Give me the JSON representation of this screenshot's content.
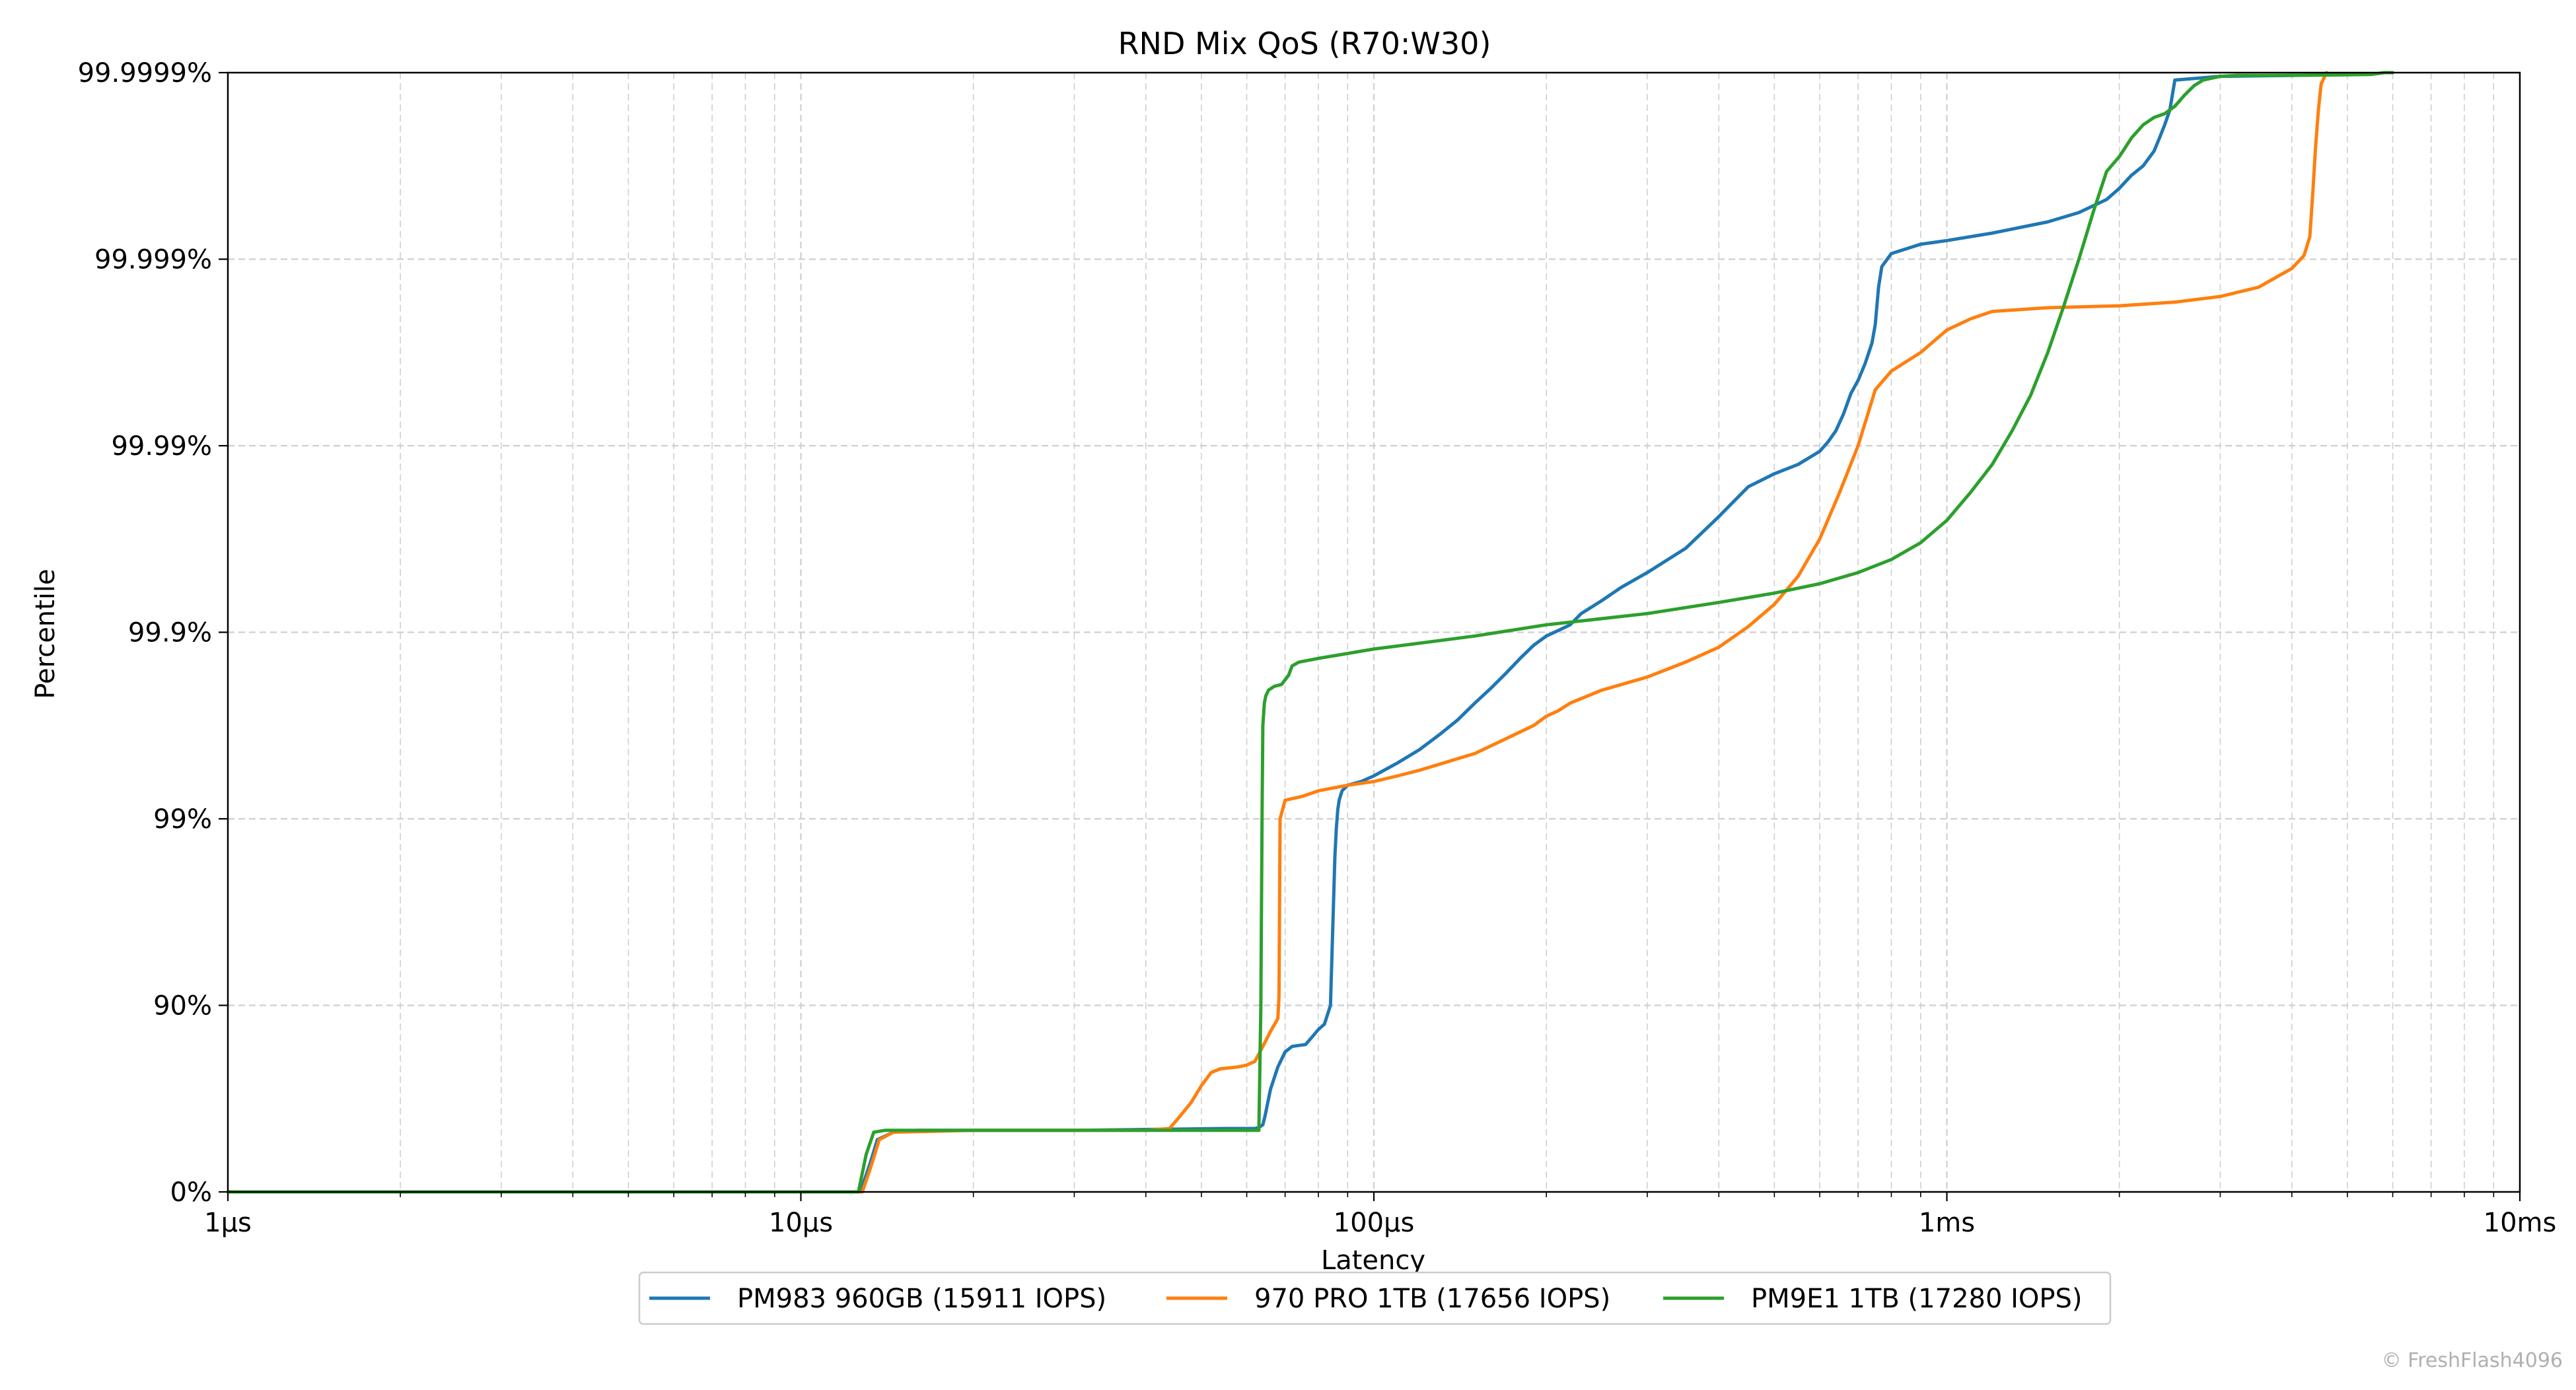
{
  "chart_data": {
    "type": "line",
    "title": "RND Mix QoS (R70:W30)",
    "xlabel": "Latency",
    "ylabel": "Percentile",
    "x_scale": "log",
    "x_unit": "µs",
    "xlim": [
      1,
      10000
    ],
    "y_scale": "nines",
    "ylim_nines": [
      0,
      6
    ],
    "x_ticks": [
      {
        "value": 1,
        "label": "1µs"
      },
      {
        "value": 10,
        "label": "10µs"
      },
      {
        "value": 100,
        "label": "100µs"
      },
      {
        "value": 1000,
        "label": "1ms"
      },
      {
        "value": 10000,
        "label": "10ms"
      }
    ],
    "y_ticks": [
      {
        "nines": 0,
        "label": "0%"
      },
      {
        "nines": 1,
        "label": "90%"
      },
      {
        "nines": 2,
        "label": "99%"
      },
      {
        "nines": 3,
        "label": "99.9%"
      },
      {
        "nines": 4,
        "label": "99.99%"
      },
      {
        "nines": 5,
        "label": "99.999%"
      },
      {
        "nines": 6,
        "label": "99.9999%"
      }
    ],
    "grid": true,
    "legend_position": "bottom-center",
    "series": [
      {
        "name": "PM983 960GB (15911 IOPS)",
        "color": "#1f77b4",
        "x": [
          1,
          12.7,
          13.2,
          13.6,
          14.5,
          16,
          30,
          55,
          62,
          63,
          64,
          64.5,
          65,
          66,
          68,
          70,
          72,
          74,
          76,
          78,
          80,
          82,
          84,
          85.5,
          86,
          86.5,
          87,
          88,
          90,
          95,
          100,
          110,
          120,
          130,
          140,
          150,
          160,
          170,
          180,
          190,
          200,
          210,
          220,
          230,
          250,
          270,
          300,
          350,
          400,
          450,
          500,
          550,
          600,
          620,
          640,
          660,
          680,
          700,
          720,
          740,
          750,
          760,
          770,
          800,
          900,
          1000,
          1200,
          1500,
          1700,
          1900,
          2000,
          2100,
          2200,
          2300,
          2350,
          2400,
          2450,
          2500,
          3000,
          4000,
          5000
        ],
        "y": [
          0,
          0,
          0.15,
          0.28,
          0.32,
          0.33,
          0.33,
          0.34,
          0.34,
          0.345,
          0.36,
          0.4,
          0.45,
          0.55,
          0.67,
          0.75,
          0.78,
          0.785,
          0.79,
          0.83,
          0.87,
          0.9,
          1.0,
          1.8,
          1.95,
          2.05,
          2.1,
          2.15,
          2.18,
          2.2,
          2.23,
          2.3,
          2.37,
          2.45,
          2.53,
          2.62,
          2.7,
          2.78,
          2.86,
          2.93,
          2.98,
          3.01,
          3.04,
          3.1,
          3.17,
          3.24,
          3.32,
          3.45,
          3.62,
          3.78,
          3.85,
          3.9,
          3.97,
          4.02,
          4.08,
          4.17,
          4.28,
          4.35,
          4.44,
          4.55,
          4.65,
          4.85,
          4.96,
          5.03,
          5.08,
          5.1,
          5.14,
          5.2,
          5.25,
          5.32,
          5.38,
          5.45,
          5.5,
          5.58,
          5.65,
          5.72,
          5.8,
          5.96,
          5.98,
          5.985,
          5.99
        ]
      },
      {
        "name": "970 PRO 1TB (17656 IOPS)",
        "color": "#ff7f0e",
        "x": [
          1,
          12.8,
          13.3,
          13.7,
          14.5,
          20,
          40,
          44,
          46,
          48,
          50,
          52,
          54,
          56,
          58,
          60,
          62,
          64,
          66,
          68,
          68.3,
          68.6,
          70,
          75,
          80,
          90,
          100,
          110,
          120,
          150,
          190,
          200,
          210,
          220,
          250,
          300,
          350,
          400,
          450,
          500,
          550,
          600,
          650,
          700,
          750,
          800,
          900,
          1000,
          1100,
          1200,
          1500,
          2000,
          2500,
          3000,
          3500,
          4000,
          4200,
          4300,
          4350,
          4400,
          4450,
          4500,
          4600
        ],
        "y": [
          0,
          0,
          0.15,
          0.28,
          0.32,
          0.33,
          0.33,
          0.34,
          0.41,
          0.48,
          0.57,
          0.64,
          0.66,
          0.665,
          0.67,
          0.68,
          0.7,
          0.78,
          0.86,
          0.93,
          1.05,
          2.0,
          2.1,
          2.12,
          2.15,
          2.18,
          2.2,
          2.23,
          2.26,
          2.35,
          2.5,
          2.55,
          2.58,
          2.62,
          2.69,
          2.76,
          2.84,
          2.92,
          3.03,
          3.15,
          3.3,
          3.5,
          3.75,
          4.0,
          4.3,
          4.4,
          4.5,
          4.62,
          4.68,
          4.72,
          4.74,
          4.75,
          4.77,
          4.8,
          4.85,
          4.95,
          5.02,
          5.12,
          5.35,
          5.6,
          5.8,
          5.94,
          6.0
        ]
      },
      {
        "name": "PM9E1 1TB (17280 IOPS)",
        "color": "#2ca02c",
        "x": [
          1,
          12.6,
          13.0,
          13.4,
          14,
          20,
          50,
          63,
          63.5,
          63.8,
          64,
          64.4,
          64.8,
          65.5,
          67,
          69,
          71,
          72,
          74,
          80,
          100,
          150,
          200,
          300,
          400,
          500,
          600,
          700,
          800,
          900,
          1000,
          1100,
          1200,
          1300,
          1400,
          1500,
          1600,
          1700,
          1800,
          1900,
          2000,
          2050,
          2100,
          2200,
          2300,
          2400,
          2500,
          2600,
          2700,
          2800,
          3000,
          3200,
          3600,
          4500,
          5500,
          5800,
          6000
        ],
        "y": [
          0,
          0,
          0.2,
          0.32,
          0.33,
          0.33,
          0.33,
          0.33,
          1.0,
          2.0,
          2.5,
          2.62,
          2.66,
          2.69,
          2.71,
          2.72,
          2.77,
          2.82,
          2.84,
          2.86,
          2.91,
          2.98,
          3.04,
          3.1,
          3.16,
          3.21,
          3.26,
          3.32,
          3.39,
          3.48,
          3.6,
          3.75,
          3.9,
          4.08,
          4.27,
          4.5,
          4.75,
          5.0,
          5.25,
          5.47,
          5.55,
          5.6,
          5.65,
          5.72,
          5.76,
          5.78,
          5.82,
          5.88,
          5.93,
          5.96,
          5.98,
          5.985,
          5.985,
          5.987,
          5.99,
          6.0,
          6.0
        ]
      }
    ]
  },
  "watermark": "© FreshFlash4096"
}
